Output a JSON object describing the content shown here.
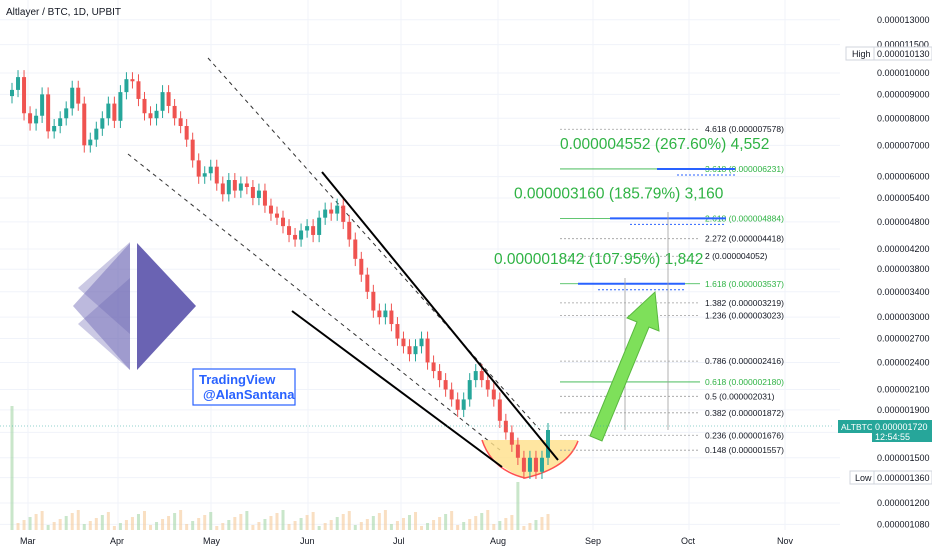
{
  "symbol_title": "Altlayer / BTC, 1D, UPBIT",
  "watermark": {
    "line1": "TradingView",
    "line2": "@AlanSantana"
  },
  "colors": {
    "up": "#26a69a",
    "down": "#ef5350",
    "grid": "#f0f3fa",
    "fib_green": "#2fb344",
    "target_blue": "#2962ff",
    "trend": "#000000",
    "logo": "#6a63b3",
    "arrow": "#7ee05a",
    "base_fill": "#ffe08a"
  },
  "price_badges": {
    "high": {
      "label": "High",
      "value": "0.000010130"
    },
    "last": {
      "label": "ALTBTC",
      "value": "0.000001720",
      "countdown": "12:54:55"
    },
    "low": {
      "label": "Low",
      "value": "0.000001360"
    }
  },
  "chart_data": {
    "type": "candlestick",
    "y_scale": "log",
    "ylim": [
      1e-06,
      1.3e-05
    ],
    "x_ticks": [
      "Mar",
      "Apr",
      "May",
      "Jun",
      "Jul",
      "Aug",
      "Sep",
      "Oct",
      "Nov"
    ],
    "y_ticks": [
      "0.000013000",
      "0.000011500",
      "0.000010000",
      "0.000009000",
      "0.000008000",
      "0.000007000",
      "0.000006000",
      "0.000005400",
      "0.000004800",
      "0.000004200",
      "0.000003800",
      "0.000003400",
      "0.000003000",
      "0.000002700",
      "0.000002400",
      "0.000002100",
      "0.000001900",
      "0.000001700",
      "0.000001500",
      "0.000001360",
      "0.000001200",
      "0.000001080"
    ],
    "fib_levels": [
      {
        "label": "4.618 (0.000007578)",
        "value": 7.578e-06
      },
      {
        "label": "3.618 (0.000006231)",
        "value": 6.231e-06
      },
      {
        "label": "2.618 (0.000004884)",
        "value": 4.884e-06
      },
      {
        "label": "2.272 (0.000004418)",
        "value": 4.418e-06
      },
      {
        "label": "2 (0.000004052)",
        "value": 4.052e-06
      },
      {
        "label": "1.618 (0.000003537)",
        "value": 3.537e-06
      },
      {
        "label": "1.382 (0.000003219)",
        "value": 3.219e-06
      },
      {
        "label": "1.236 (0.000003023)",
        "value": 3.023e-06
      },
      {
        "label": "0.786 (0.000002416)",
        "value": 2.416e-06
      },
      {
        "label": "0.618 (0.000002180)",
        "value": 2.18e-06
      },
      {
        "label": "0.5 (0.000002031)",
        "value": 2.031e-06
      },
      {
        "label": "0.382 (0.000001872)",
        "value": 1.872e-06
      },
      {
        "label": "0.236 (0.000001676)",
        "value": 1.676e-06
      },
      {
        "label": "0.148 (0.000001557)",
        "value": 1.557e-06
      }
    ],
    "targets": [
      {
        "label": "0.000004552 (267.60%) 4,552",
        "value": 6.231e-06
      },
      {
        "label": "0.000003160 (185.79%) 3,160",
        "value": 4.884e-06
      },
      {
        "label": "0.000001842 (107.95%) 1,842",
        "value": 3.537e-06
      }
    ],
    "candles_close": [
      9.2e-06,
      9.8e-06,
      8.2e-06,
      7.8e-06,
      8.1e-06,
      9e-06,
      7.5e-06,
      7.7e-06,
      8e-06,
      8.4e-06,
      9.3e-06,
      8.6e-06,
      7e-06,
      7.2e-06,
      7.6e-06,
      8e-06,
      8.6e-06,
      7.9e-06,
      9.1e-06,
      9.7e-06,
      9.6e-06,
      8.8e-06,
      8.2e-06,
      8e-06,
      8.3e-06,
      9.1e-06,
      8.5e-06,
      8e-06,
      7.7e-06,
      7.2e-06,
      6.5e-06,
      6e-06,
      6.1e-06,
      6.3e-06,
      5.8e-06,
      5.5e-06,
      5.9e-06,
      5.6e-06,
      5.8e-06,
      5.7e-06,
      5.4e-06,
      5.6e-06,
      5.2e-06,
      5e-06,
      4.9e-06,
      4.7e-06,
      4.5e-06,
      4.4e-06,
      4.6e-06,
      4.7e-06,
      4.5e-06,
      4.9e-06,
      5.1e-06,
      5e-06,
      5.2e-06,
      4.8e-06,
      4.4e-06,
      4e-06,
      3.7e-06,
      3.4e-06,
      3.1e-06,
      3e-06,
      3.1e-06,
      2.9e-06,
      2.7e-06,
      2.6e-06,
      2.5e-06,
      2.6e-06,
      2.7e-06,
      2.4e-06,
      2.3e-06,
      2.2e-06,
      2.1e-06,
      2e-06,
      1.9e-06,
      2e-06,
      2.2e-06,
      2.3e-06,
      2.2e-06,
      2.1e-06,
      2e-06,
      1.8e-06,
      1.7e-06,
      1.6e-06,
      1.5e-06,
      1.4e-06,
      1.5e-06,
      1.4e-06,
      1.5e-06,
      1.72e-06
    ]
  }
}
